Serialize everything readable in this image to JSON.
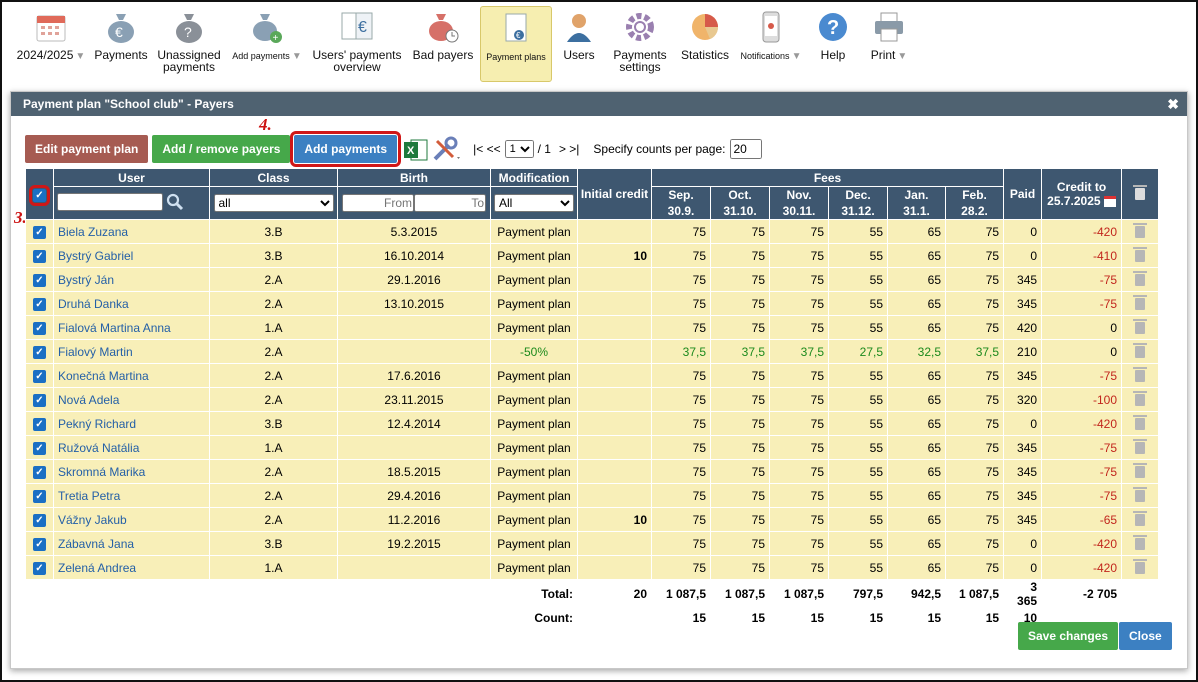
{
  "toolbar": [
    {
      "label": "2024/2025",
      "icon": "calendar-icon",
      "arrow": true
    },
    {
      "label": "Payments",
      "icon": "money-bag-icon"
    },
    {
      "label": "Unassigned payments",
      "icon": "money-bag-question-icon"
    },
    {
      "label": "Add payments",
      "icon": "money-bag-plus-icon",
      "small": true,
      "arrow": true
    },
    {
      "label": "Users' payments overview",
      "icon": "document-euro-icon"
    },
    {
      "label": "Bad payers",
      "icon": "money-bag-clock-icon"
    },
    {
      "label": "Payment plans",
      "icon": "payment-plan-icon",
      "small": true,
      "active": true
    },
    {
      "label": "Users",
      "icon": "user-icon"
    },
    {
      "label": "Payments settings",
      "icon": "gear-icon"
    },
    {
      "label": "Statistics",
      "icon": "pie-chart-icon"
    },
    {
      "label": "Notifications",
      "icon": "phone-icon",
      "small": true,
      "arrow": true
    },
    {
      "label": "Help",
      "icon": "help-icon"
    },
    {
      "label": "Print",
      "icon": "printer-icon",
      "arrow": true
    }
  ],
  "dialog": {
    "title": "Payment plan \"School club\" - Payers",
    "close": "✖",
    "buttons": {
      "edit": "Edit payment plan",
      "addremove": "Add / remove payers",
      "addpayments": "Add payments"
    },
    "pager": {
      "nav_left": "|< <<",
      "page_value": "1",
      "of": "/ 1",
      "nav_right": "> >|",
      "counts_label": "Specify counts per page:",
      "counts_value": "20"
    },
    "labels": {
      "step3": "3.",
      "step4": "4."
    },
    "save": "Save changes",
    "closebtn": "Close"
  },
  "table": {
    "headers": {
      "user": "User",
      "class": "Class",
      "birth": "Birth",
      "modification": "Modification",
      "initial_credit": "Initial credit",
      "fees": "Fees",
      "paid": "Paid",
      "credit_to": "Credit to",
      "credit_date": "25.7.2025"
    },
    "fee_months": [
      [
        "Sep.",
        "30.9."
      ],
      [
        "Oct.",
        "31.10."
      ],
      [
        "Nov.",
        "30.11."
      ],
      [
        "Dec.",
        "31.12."
      ],
      [
        "Jan.",
        "31.1."
      ],
      [
        "Feb.",
        "28.2."
      ]
    ],
    "filters": {
      "class": "all",
      "from": "From",
      "to": "To",
      "mod": "All"
    },
    "rows": [
      {
        "name": "Biela Zuzana",
        "class": "3.B",
        "birth": "5.3.2015",
        "mod": "Payment plan",
        "ic": "",
        "fees": [
          "75",
          "75",
          "75",
          "55",
          "65",
          "75"
        ],
        "paid": "0",
        "credit": "-420"
      },
      {
        "name": "Bystrý Gabriel",
        "class": "3.B",
        "birth": "16.10.2014",
        "mod": "Payment plan",
        "ic": "10",
        "fees": [
          "75",
          "75",
          "75",
          "55",
          "65",
          "75"
        ],
        "paid": "0",
        "credit": "-410"
      },
      {
        "name": "Bystrý Ján",
        "class": "2.A",
        "birth": "29.1.2016",
        "mod": "Payment plan",
        "ic": "",
        "fees": [
          "75",
          "75",
          "75",
          "55",
          "65",
          "75"
        ],
        "paid": "345",
        "credit": "-75"
      },
      {
        "name": "Druhá Danka",
        "class": "2.A",
        "birth": "13.10.2015",
        "mod": "Payment plan",
        "ic": "",
        "fees": [
          "75",
          "75",
          "75",
          "55",
          "65",
          "75"
        ],
        "paid": "345",
        "credit": "-75"
      },
      {
        "name": "Fialová Martina Anna",
        "class": "1.A",
        "birth": "",
        "mod": "Payment plan",
        "ic": "",
        "fees": [
          "75",
          "75",
          "75",
          "55",
          "65",
          "75"
        ],
        "paid": "420",
        "credit": "0"
      },
      {
        "name": "Fialový Martin",
        "class": "2.A",
        "birth": "",
        "mod": "-50%",
        "ic": "",
        "fees": [
          "37,5",
          "37,5",
          "37,5",
          "27,5",
          "32,5",
          "37,5"
        ],
        "paid": "210",
        "credit": "0",
        "green": true
      },
      {
        "name": "Konečná Martina",
        "class": "2.A",
        "birth": "17.6.2016",
        "mod": "Payment plan",
        "ic": "",
        "fees": [
          "75",
          "75",
          "75",
          "55",
          "65",
          "75"
        ],
        "paid": "345",
        "credit": "-75"
      },
      {
        "name": "Nová Adela",
        "class": "2.A",
        "birth": "23.11.2015",
        "mod": "Payment plan",
        "ic": "",
        "fees": [
          "75",
          "75",
          "75",
          "55",
          "65",
          "75"
        ],
        "paid": "320",
        "credit": "-100"
      },
      {
        "name": "Pekný Richard",
        "class": "3.B",
        "birth": "12.4.2014",
        "mod": "Payment plan",
        "ic": "",
        "fees": [
          "75",
          "75",
          "75",
          "55",
          "65",
          "75"
        ],
        "paid": "0",
        "credit": "-420"
      },
      {
        "name": "Ružová Natália",
        "class": "1.A",
        "birth": "",
        "mod": "Payment plan",
        "ic": "",
        "fees": [
          "75",
          "75",
          "75",
          "55",
          "65",
          "75"
        ],
        "paid": "345",
        "credit": "-75"
      },
      {
        "name": "Skromná Marika",
        "class": "2.A",
        "birth": "18.5.2015",
        "mod": "Payment plan",
        "ic": "",
        "fees": [
          "75",
          "75",
          "75",
          "55",
          "65",
          "75"
        ],
        "paid": "345",
        "credit": "-75"
      },
      {
        "name": "Tretia Petra",
        "class": "2.A",
        "birth": "29.4.2016",
        "mod": "Payment plan",
        "ic": "",
        "fees": [
          "75",
          "75",
          "75",
          "55",
          "65",
          "75"
        ],
        "paid": "345",
        "credit": "-75"
      },
      {
        "name": "Vážny Jakub",
        "class": "2.A",
        "birth": "11.2.2016",
        "mod": "Payment plan",
        "ic": "10",
        "fees": [
          "75",
          "75",
          "75",
          "55",
          "65",
          "75"
        ],
        "paid": "345",
        "credit": "-65"
      },
      {
        "name": "Zábavná Jana",
        "class": "3.B",
        "birth": "19.2.2015",
        "mod": "Payment plan",
        "ic": "",
        "fees": [
          "75",
          "75",
          "75",
          "55",
          "65",
          "75"
        ],
        "paid": "0",
        "credit": "-420"
      },
      {
        "name": "Zelená Andrea",
        "class": "1.A",
        "birth": "",
        "mod": "Payment plan",
        "ic": "",
        "fees": [
          "75",
          "75",
          "75",
          "55",
          "65",
          "75"
        ],
        "paid": "0",
        "credit": "-420"
      }
    ],
    "totals": {
      "label": "Total:",
      "ic": "20",
      "fees": [
        "1 087,5",
        "1 087,5",
        "1 087,5",
        "797,5",
        "942,5",
        "1 087,5"
      ],
      "paid": "3 365",
      "credit": "-2 705"
    },
    "counts": {
      "label": "Count:",
      "fees": [
        "15",
        "15",
        "15",
        "15",
        "15",
        "15"
      ],
      "paid": "10"
    }
  }
}
